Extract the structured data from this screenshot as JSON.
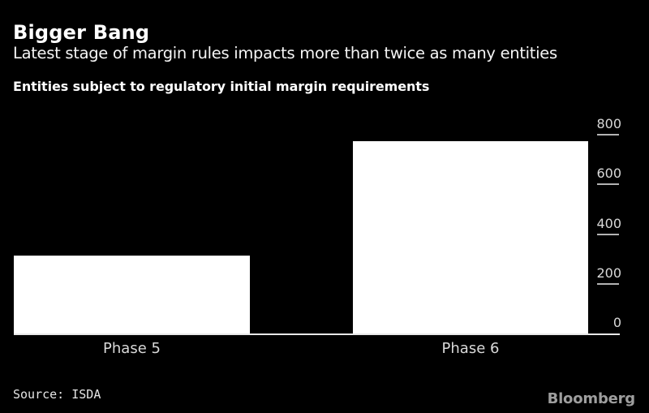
{
  "header": {
    "title": "Bigger Bang",
    "subtitle": "Latest stage of margin rules impacts more than twice as many entities",
    "chart_label": "Entities subject to regulatory initial margin requirements"
  },
  "chart_data": {
    "type": "bar",
    "categories": [
      "Phase 5",
      "Phase 6"
    ],
    "values": [
      314,
      775
    ],
    "title": "Entities subject to regulatory initial margin requirements",
    "xlabel": "",
    "ylabel": "",
    "ylim": [
      0,
      800
    ],
    "yticks": [
      0,
      200,
      400,
      600,
      800
    ],
    "axis_side": "right",
    "grid": false,
    "legend": "none",
    "bar_color": "#ffffff",
    "background_color": "#000000"
  },
  "footer": {
    "source": "Source: ISDA",
    "brand": "Bloomberg"
  },
  "colors": {
    "background": "#000000",
    "bar": "#ffffff",
    "title_text": "#ffffff",
    "axis_text": "#d9d9d9",
    "tick_line": "#b3b3b3",
    "baseline": "#e8e8e8",
    "brand_text": "#9e9e9e"
  }
}
